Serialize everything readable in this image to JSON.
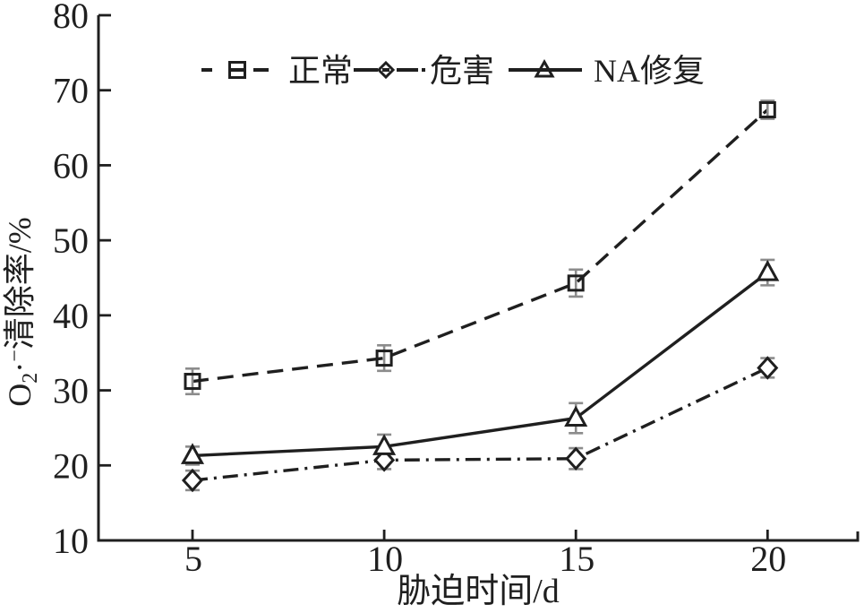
{
  "figure": {
    "background": "#ffffff",
    "description": "Line chart of superoxide anion radical clearance rate versus stress time"
  },
  "chart_data": {
    "type": "line",
    "title": "",
    "xlabel": "胁迫时间/d",
    "ylabel": "O2·−清除率/%",
    "ylabel_parts": {
      "base": "O",
      "sub": "2",
      "dot": "·",
      "sup": "−",
      "rest": "清除率/%"
    },
    "x": [
      5,
      10,
      15,
      20
    ],
    "xticks": [
      5,
      10,
      15,
      20
    ],
    "yticks": [
      10,
      20,
      30,
      40,
      50,
      60,
      70,
      80
    ],
    "xlim": [
      2.5,
      22.4
    ],
    "ylim": [
      10,
      80
    ],
    "grid": false,
    "legend_position": "top-center-inside",
    "series": [
      {
        "key": "normal",
        "name": "正常",
        "marker": "square",
        "line_style": "dashed",
        "values": [
          31.2,
          34.3,
          44.3,
          67.4
        ],
        "errors": [
          1.7,
          1.7,
          1.8,
          1.2
        ]
      },
      {
        "key": "harm",
        "name": "危害",
        "marker": "diamond",
        "line_style": "dash-dot",
        "values": [
          18.0,
          20.7,
          20.9,
          33.0
        ],
        "errors": [
          1.3,
          1.2,
          1.4,
          1.3
        ]
      },
      {
        "key": "na-repair",
        "name": "NA修复",
        "marker": "triangle",
        "line_style": "solid",
        "values": [
          21.3,
          22.5,
          26.3,
          45.7
        ],
        "errors": [
          1.2,
          1.6,
          2.0,
          1.7
        ]
      }
    ],
    "colors": {
      "line": "#1f1f1f",
      "error_bar": "#8c8c8c",
      "marker_fill": "#ffffff",
      "background": "#ffffff"
    }
  }
}
